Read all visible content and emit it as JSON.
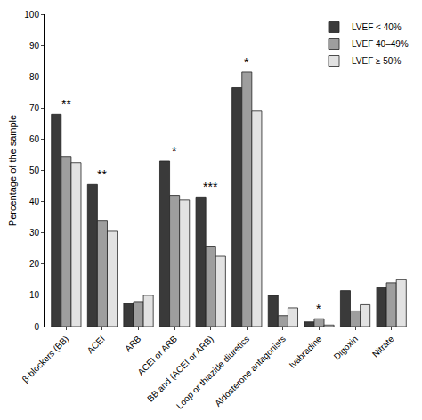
{
  "chart_data": {
    "type": "bar",
    "y_label": "Percentage of the sample",
    "categories": [
      "β-blockers (BB)",
      "ACEI",
      "ARB",
      "ACEI or ARB",
      "BB and (ACEI or ARB)",
      "Loop or thiazide diuretics",
      "Aldosterone antagonists",
      "Ivabradine",
      "Digoxin",
      "Nitrate"
    ],
    "series": [
      {
        "name": "LVEF < 40%",
        "color": "#3a3a3a",
        "values": [
          68,
          45.5,
          7.5,
          53,
          41.5,
          76.5,
          10,
          1.5,
          11.5,
          12.5
        ]
      },
      {
        "name": "LVEF 40–49%",
        "color": "#9e9e9e",
        "values": [
          54.5,
          34,
          8,
          42,
          25.5,
          81.5,
          3.5,
          2.5,
          5,
          14
        ]
      },
      {
        "name": "LVEF ≥ 50%",
        "color": "#e2e2e2",
        "values": [
          52.5,
          30.5,
          10,
          40.5,
          22.5,
          69,
          6,
          0.5,
          7,
          15
        ]
      }
    ],
    "annotations": [
      {
        "category": "β-blockers (BB)",
        "text": "**"
      },
      {
        "category": "ACEI",
        "text": "**"
      },
      {
        "category": "ACEI or ARB",
        "text": "*"
      },
      {
        "category": "BB and (ACEI or ARB)",
        "text": "***"
      },
      {
        "category": "Loop or thiazide diuretics",
        "text": "*"
      },
      {
        "category": "Ivabradine",
        "text": "*"
      }
    ],
    "ylim": [
      0,
      100
    ],
    "yticks": [
      0,
      10,
      20,
      30,
      40,
      50,
      60,
      70,
      80,
      90,
      100
    ],
    "grid": false,
    "legend": "upper right"
  }
}
